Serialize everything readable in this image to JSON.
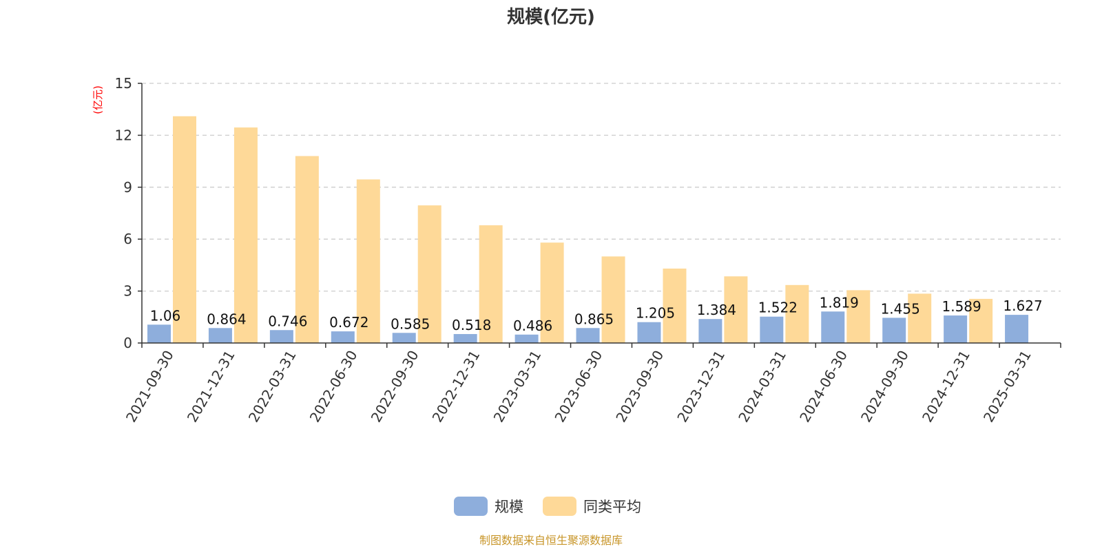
{
  "chart_data": {
    "type": "bar",
    "title": "规模(亿元)",
    "ylabel": "(亿元)",
    "xlabel": "",
    "ylim": [
      0,
      15
    ],
    "yticks": [
      0,
      3,
      6,
      9,
      12,
      15
    ],
    "grid": true,
    "legend_position": "bottom",
    "categories": [
      "2021-09-30",
      "2021-12-31",
      "2022-03-31",
      "2022-06-30",
      "2022-09-30",
      "2022-12-31",
      "2023-03-31",
      "2023-06-30",
      "2023-09-30",
      "2023-12-31",
      "2024-03-31",
      "2024-06-30",
      "2024-09-30",
      "2024-12-31",
      "2025-03-31"
    ],
    "series": [
      {
        "name": "规模",
        "color": "#8eaedc",
        "values": [
          1.06,
          0.864,
          0.746,
          0.672,
          0.585,
          0.518,
          0.486,
          0.865,
          1.205,
          1.384,
          1.522,
          1.819,
          1.455,
          1.589,
          1.627
        ],
        "labels": [
          "1.06",
          "0.864",
          "0.746",
          "0.672",
          "0.585",
          "0.518",
          "0.486",
          "0.865",
          "1.205",
          "1.384",
          "1.522",
          "1.819",
          "1.455",
          "1.589",
          "1.627"
        ]
      },
      {
        "name": "同类平均",
        "color": "#fed998",
        "values": [
          13.1,
          12.45,
          10.8,
          9.45,
          7.95,
          6.8,
          5.8,
          5.0,
          4.3,
          3.85,
          3.35,
          3.05,
          2.85,
          2.55,
          null
        ]
      }
    ],
    "source": "制图数据来自恒生聚源数据库"
  }
}
